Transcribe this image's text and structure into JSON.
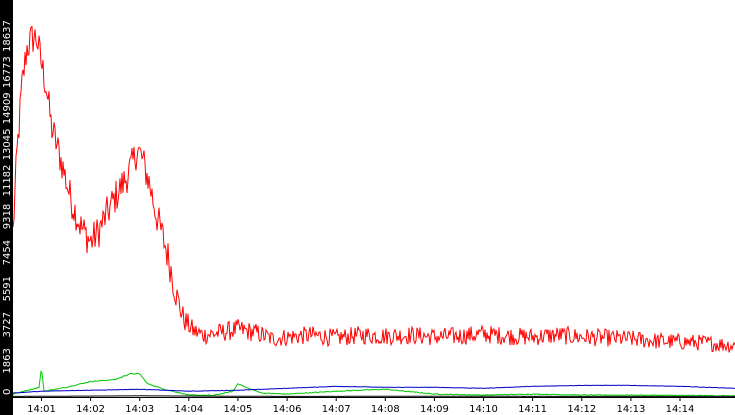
{
  "chart_data": {
    "type": "line",
    "title": "",
    "xlabel": "",
    "ylabel": "",
    "x_range_minutes": [
      0.42,
      15.12
    ],
    "ylim": [
      0,
      20500
    ],
    "grid": false,
    "legend": "none",
    "colors": {
      "background": "#ffffff",
      "axis_strip": "#000000",
      "tick_text_y": "#ffffff",
      "tick_text_x": "#000000"
    },
    "x_tick_labels": [
      "14:01",
      "14:02",
      "14:03",
      "14:04",
      "14:05",
      "14:06",
      "14:07",
      "14:08",
      "14:09",
      "14:10",
      "14:11",
      "14:12",
      "14:13",
      "14:14"
    ],
    "x_tick_minutes": [
      1,
      2,
      3,
      4,
      5,
      6,
      7,
      8,
      9,
      10,
      11,
      12,
      13,
      14
    ],
    "y_ticks": [
      0,
      1863,
      3727,
      5591,
      7454,
      9318,
      11182,
      13045,
      14909,
      16773,
      18637
    ],
    "y_tick_labels": [
      "0",
      "1863",
      "3727",
      "5591",
      "7454",
      "9318",
      "11182",
      "13045",
      "14909",
      "16773",
      "18637"
    ],
    "series": [
      {
        "color": "#ff0000",
        "noise": 900,
        "points": [
          [
            0.42,
            8500
          ],
          [
            0.5,
            12500
          ],
          [
            0.6,
            16000
          ],
          [
            0.7,
            18000
          ],
          [
            0.8,
            18500
          ],
          [
            0.9,
            18600
          ],
          [
            1.0,
            17200
          ],
          [
            1.1,
            16000
          ],
          [
            1.2,
            14000
          ],
          [
            1.4,
            12200
          ],
          [
            1.6,
            10200
          ],
          [
            1.8,
            8800
          ],
          [
            2.0,
            8000
          ],
          [
            2.15,
            8500
          ],
          [
            2.3,
            9300
          ],
          [
            2.5,
            10300
          ],
          [
            2.7,
            11200
          ],
          [
            2.85,
            12000
          ],
          [
            2.95,
            12800
          ],
          [
            3.05,
            12300
          ],
          [
            3.2,
            11000
          ],
          [
            3.35,
            9300
          ],
          [
            3.5,
            8000
          ],
          [
            3.6,
            7000
          ],
          [
            3.75,
            5200
          ],
          [
            3.9,
            4000
          ],
          [
            4.1,
            3400
          ],
          [
            4.3,
            3200
          ],
          [
            4.6,
            3300
          ],
          [
            5.0,
            3500
          ],
          [
            5.4,
            3300
          ],
          [
            5.7,
            3000
          ],
          [
            6.0,
            3100
          ],
          [
            6.5,
            3200
          ],
          [
            7.0,
            3050
          ],
          [
            7.5,
            3200
          ],
          [
            8.0,
            3150
          ],
          [
            8.5,
            3200
          ],
          [
            9.0,
            3100
          ],
          [
            9.5,
            3150
          ],
          [
            10.0,
            3250
          ],
          [
            10.5,
            3150
          ],
          [
            11.0,
            3100
          ],
          [
            11.5,
            3200
          ],
          [
            12.0,
            3100
          ],
          [
            12.5,
            3050
          ],
          [
            13.0,
            3000
          ],
          [
            13.5,
            2900
          ],
          [
            14.0,
            2850
          ],
          [
            14.5,
            2800
          ],
          [
            15.12,
            2650
          ]
        ]
      },
      {
        "color": "#00c800",
        "noise": 140,
        "points": [
          [
            0.42,
            150
          ],
          [
            0.8,
            400
          ],
          [
            0.95,
            500
          ],
          [
            1.0,
            1500
          ],
          [
            1.05,
            300
          ],
          [
            1.5,
            500
          ],
          [
            2.0,
            800
          ],
          [
            2.5,
            900
          ],
          [
            2.8,
            1200
          ],
          [
            3.0,
            1200
          ],
          [
            3.15,
            700
          ],
          [
            3.5,
            400
          ],
          [
            4.0,
            100
          ],
          [
            4.5,
            80
          ],
          [
            4.9,
            300
          ],
          [
            5.0,
            700
          ],
          [
            5.15,
            500
          ],
          [
            5.5,
            200
          ],
          [
            6.0,
            150
          ],
          [
            7.0,
            300
          ],
          [
            8.0,
            400
          ],
          [
            9.0,
            150
          ],
          [
            10.0,
            100
          ],
          [
            11.0,
            150
          ],
          [
            12.0,
            100
          ],
          [
            13.0,
            100
          ],
          [
            14.0,
            80
          ],
          [
            15.12,
            60
          ]
        ]
      },
      {
        "color": "#0000c8",
        "noise": 70,
        "points": [
          [
            0.42,
            200
          ],
          [
            1.0,
            300
          ],
          [
            2.0,
            350
          ],
          [
            3.0,
            400
          ],
          [
            4.0,
            300
          ],
          [
            5.0,
            350
          ],
          [
            6.0,
            450
          ],
          [
            7.0,
            550
          ],
          [
            8.0,
            500
          ],
          [
            9.0,
            500
          ],
          [
            10.0,
            450
          ],
          [
            11.0,
            550
          ],
          [
            12.0,
            600
          ],
          [
            13.0,
            600
          ],
          [
            14.0,
            550
          ],
          [
            15.12,
            450
          ]
        ]
      },
      {
        "color": "#000000",
        "noise": 10,
        "points": [
          [
            0.42,
            30
          ],
          [
            3.0,
            60
          ],
          [
            6.0,
            30
          ],
          [
            9.0,
            40
          ],
          [
            12.0,
            30
          ],
          [
            15.12,
            30
          ]
        ]
      }
    ]
  }
}
